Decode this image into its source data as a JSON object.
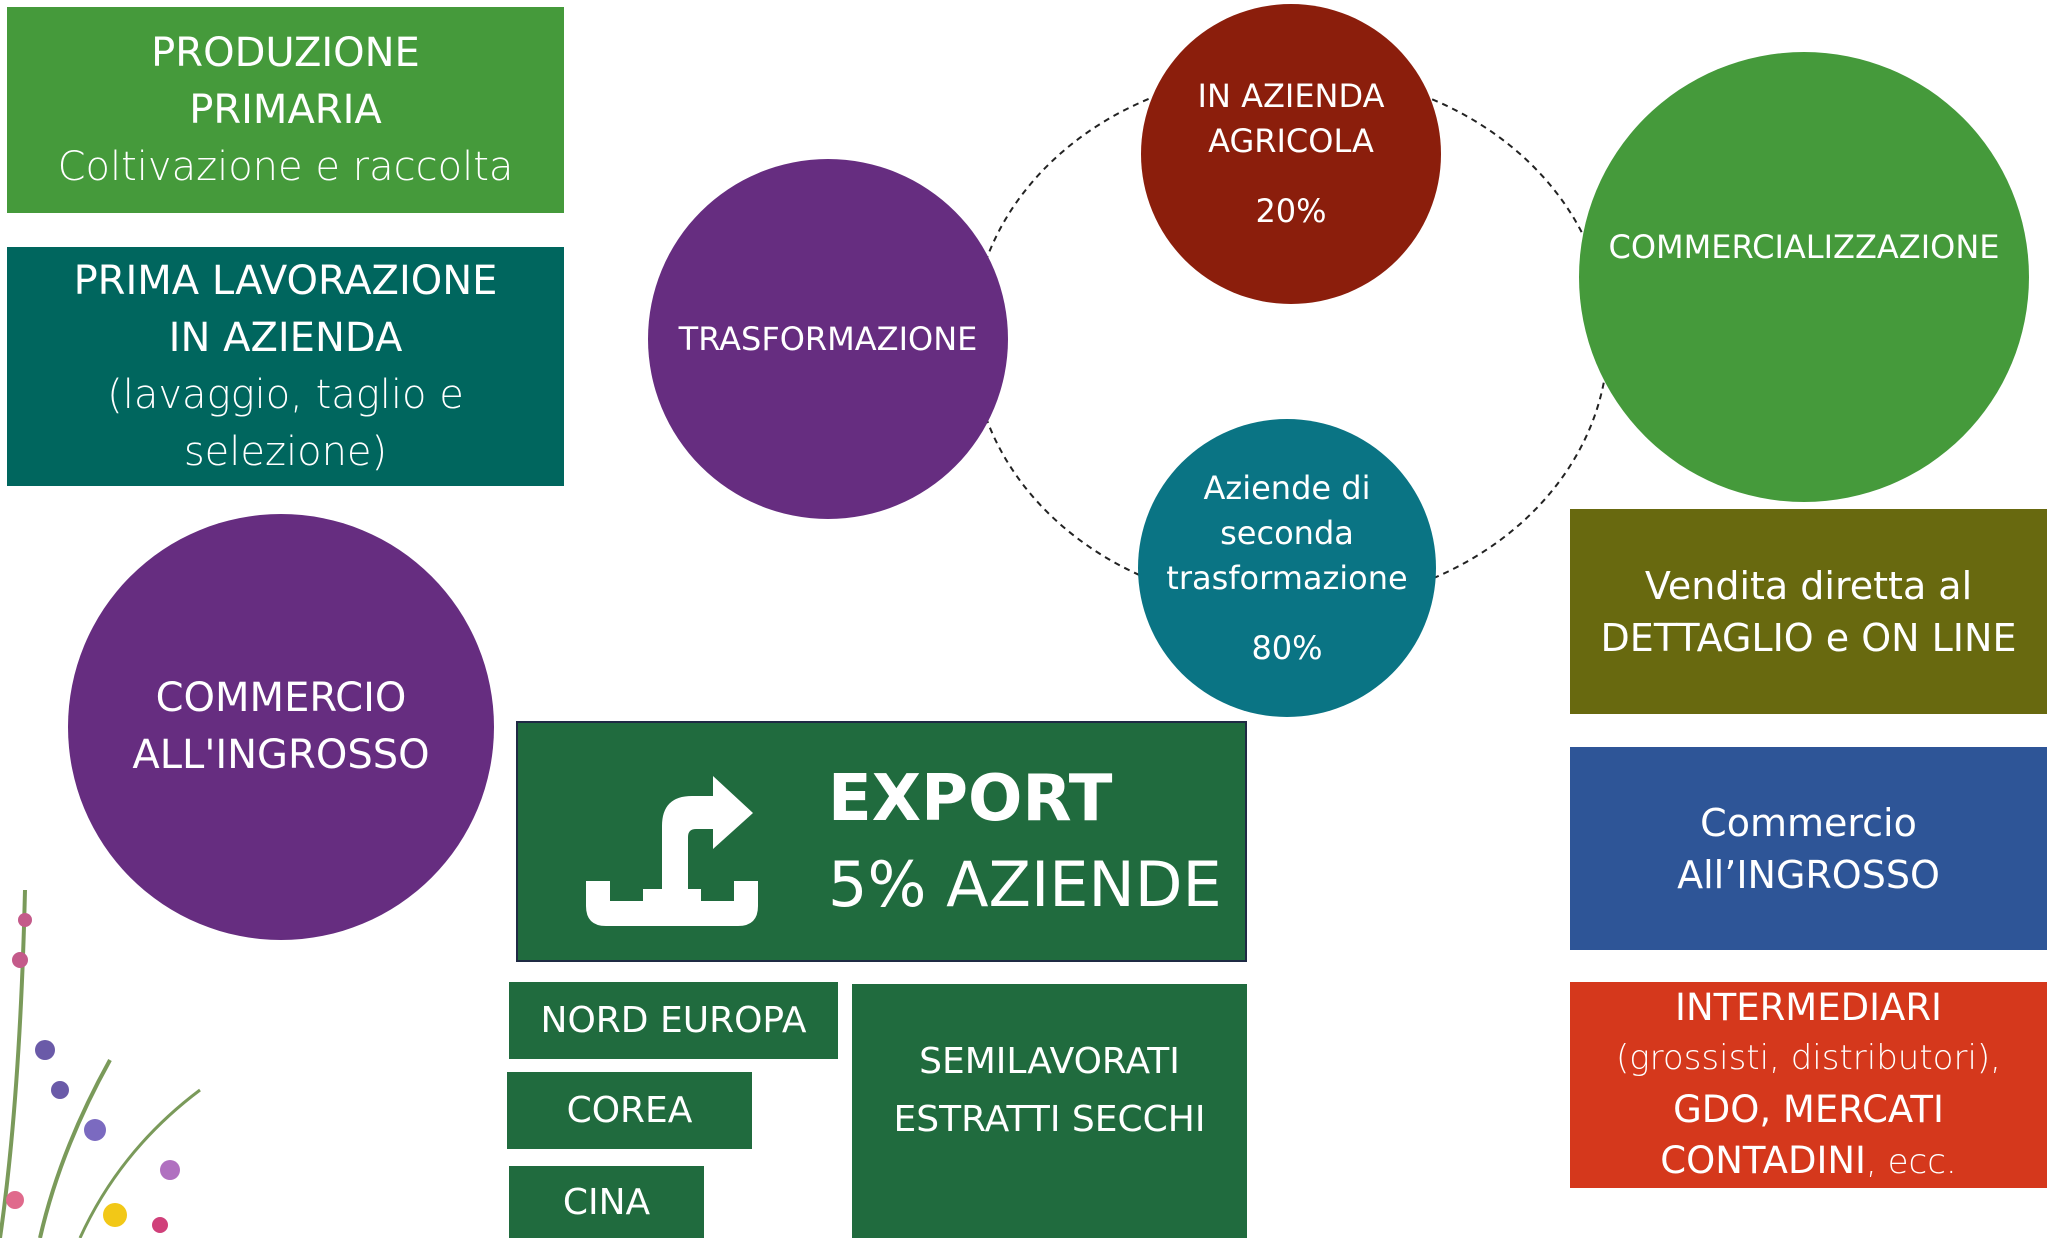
{
  "produzione_primaria": {
    "lines": [
      "PRODUZIONE",
      "PRIMARIA"
    ],
    "subtitle": "Coltivazione e raccolta"
  },
  "prima_lavorazione": {
    "lines": [
      "PRIMA LAVORAZIONE",
      "IN AZIENDA"
    ],
    "subtitle": [
      "(lavaggio, taglio e",
      "selezione)"
    ]
  },
  "commercio_ingrosso_circle": {
    "lines": [
      "COMMERCIO",
      "ALL'INGROSSO"
    ]
  },
  "trasformazione": {
    "label": "TRASFORMAZIONE"
  },
  "in_azienda_agricola": {
    "lines": [
      "IN AZIENDA",
      "AGRICOLA"
    ],
    "share": "20%"
  },
  "seconda_trasformazione": {
    "lines": [
      "Aziende di",
      "seconda",
      "trasformazione"
    ],
    "share": "80%"
  },
  "commercializzazione": {
    "label": "COMMERCIALIZZAZIONE"
  },
  "vendita_diretta": {
    "lines": [
      "Vendita diretta al",
      "DETTAGLIO e ON LINE"
    ]
  },
  "commercio_ingrosso_box": {
    "lines": [
      "Commercio",
      "All’INGROSSO"
    ]
  },
  "intermediari": {
    "title": "INTERMEDIARI",
    "detail": "(grossisti, distributori),",
    "line3": "GDO, MERCATI",
    "line4": "CONTADINI",
    "suffix": ", ecc."
  },
  "export": {
    "title": "EXPORT",
    "subtitle": "5% AZIENDE"
  },
  "export_destinations": [
    "NORD EUROPA",
    "COREA",
    "CINA"
  ],
  "export_products": [
    "SEMILAVORATI",
    "ESTRATTI SECCHI"
  ]
}
